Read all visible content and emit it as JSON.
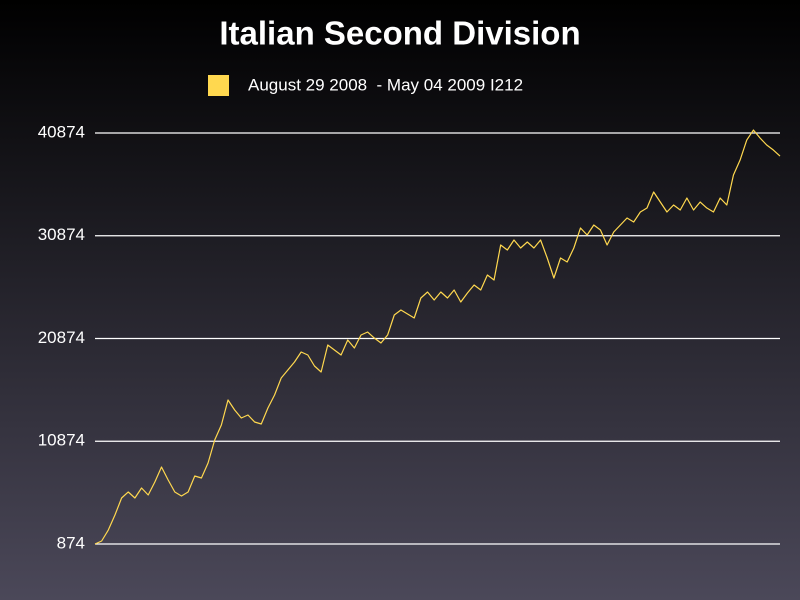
{
  "chart_data": {
    "type": "line",
    "title": "Italian Second Division",
    "series": [
      {
        "name": "August 29 2008  - May 04 2009 I212",
        "color": "#ffd84f",
        "values": [
          874,
          1166,
          2236,
          3696,
          5351,
          5935,
          5351,
          6324,
          5643,
          6908,
          8368,
          7103,
          5935,
          5545,
          5935,
          7492,
          7297,
          8757,
          10995,
          12455,
          14888,
          13915,
          13137,
          13429,
          12747,
          12553,
          14110,
          15375,
          17029,
          17808,
          18587,
          19560,
          19268,
          18198,
          17614,
          20241,
          19755,
          19268,
          20728,
          19949,
          21214,
          21506,
          20922,
          20436,
          21214,
          23161,
          23647,
          23258,
          22869,
          24816,
          25400,
          24621,
          25400,
          24816,
          25594,
          24426,
          25302,
          26081,
          25594,
          27054,
          26568,
          29974,
          29487,
          30461,
          29682,
          30266,
          29682,
          30461,
          28709,
          26762,
          28709,
          28319,
          29682,
          31629,
          30947,
          31920,
          31433,
          29974,
          31239,
          31920,
          32601,
          32212,
          33185,
          33574,
          35131,
          34158,
          33185,
          33866,
          33380,
          34548,
          33380,
          34158,
          33574,
          33185,
          34548,
          33866,
          36785,
          38245,
          40191,
          41164,
          40386,
          39705,
          39218,
          38634
        ]
      }
    ],
    "ylim": [
      874,
      40874
    ],
    "yticks": [
      874,
      10874,
      20874,
      30874,
      40874
    ],
    "grid": true
  }
}
